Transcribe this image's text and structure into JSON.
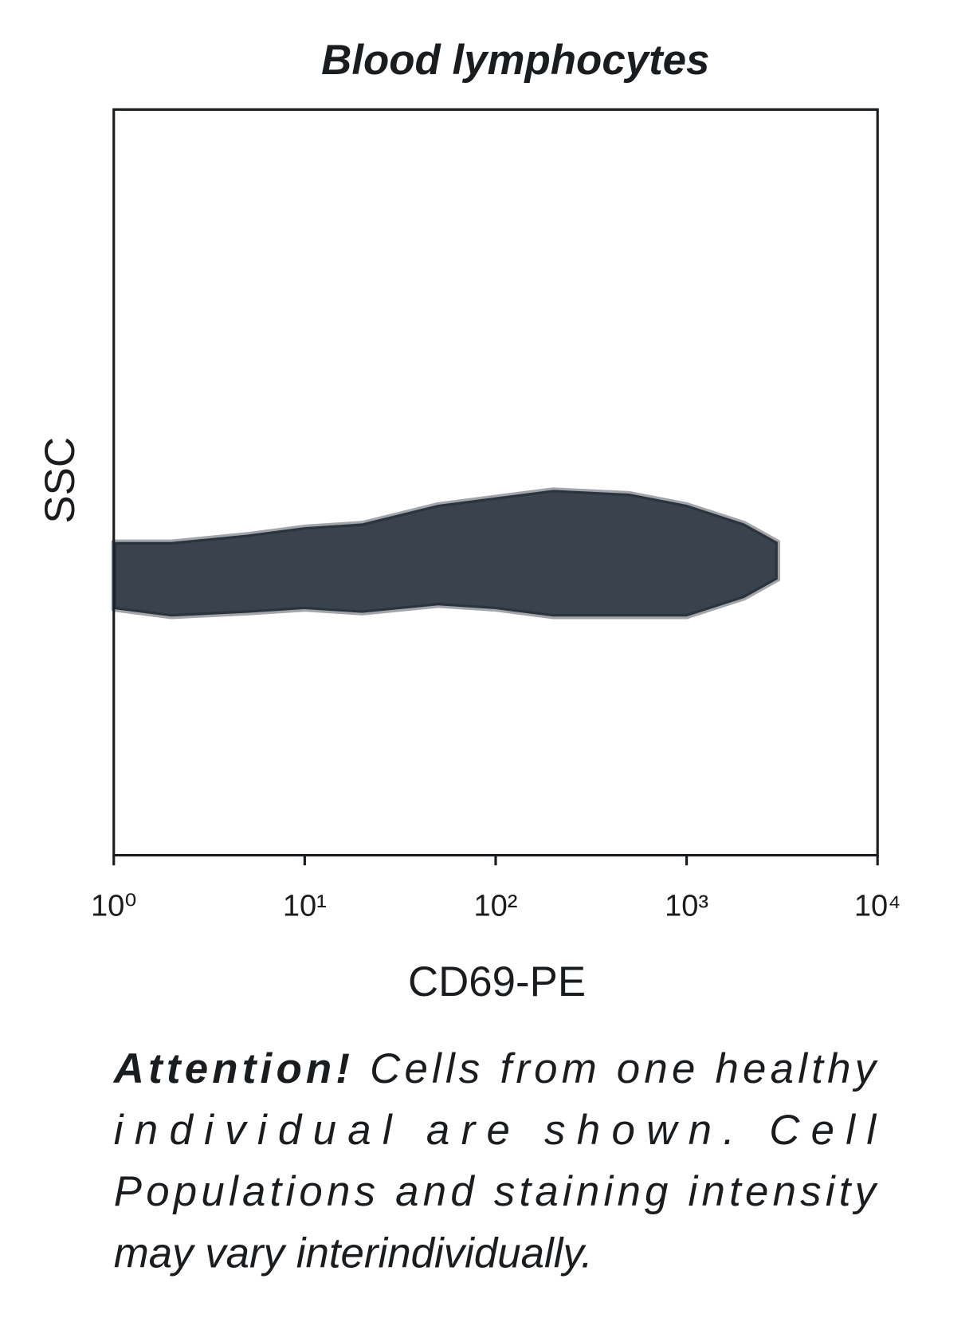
{
  "chart_data": {
    "type": "band",
    "title": "Blood lymphocytes",
    "x_label": "CD69-PE",
    "y_label": "SSC",
    "x_scale": "log",
    "color": "#17212b",
    "x": [
      1,
      2,
      5,
      10,
      20,
      50,
      100,
      200,
      500,
      1000,
      2000,
      3000
    ],
    "low": [
      330,
      320,
      325,
      330,
      325,
      335,
      330,
      320,
      320,
      320,
      345,
      370
    ],
    "high": [
      420,
      420,
      430,
      440,
      445,
      470,
      480,
      490,
      485,
      470,
      445,
      420
    ],
    "xlim": [
      1,
      10000
    ],
    "xticks": [
      {
        "value": 1,
        "label": "10⁰"
      },
      {
        "value": 10,
        "label": "10¹"
      },
      {
        "value": 100,
        "label": "10²"
      },
      {
        "value": 1000,
        "label": "10³"
      },
      {
        "value": 10000,
        "label": "10⁴"
      }
    ],
    "ylim": [
      0,
      1000
    ]
  },
  "note": {
    "lead": "Attention!",
    "lines": [
      "Cells from one healthy",
      "individual are shown. Cell",
      "Populations and staining intensity",
      "may vary interindividually."
    ]
  }
}
